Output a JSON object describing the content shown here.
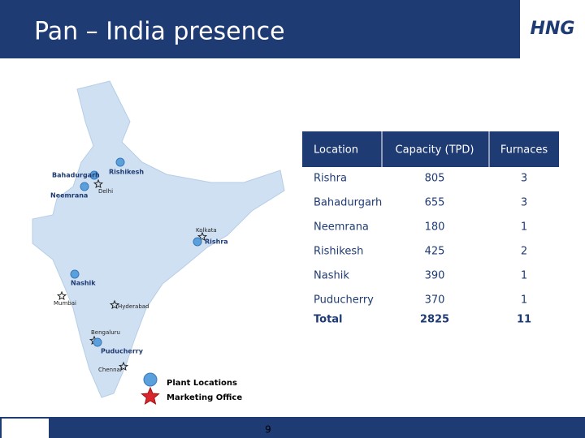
{
  "header": {
    "title": "Pan – India presence",
    "logo": "HNG"
  },
  "map": {
    "places": [
      {
        "label": "Rishikesh",
        "kind": "plant"
      },
      {
        "label": "Bahadurgarh",
        "kind": "plant"
      },
      {
        "label": "Delhi",
        "kind": "office"
      },
      {
        "label": "Neemrana",
        "kind": "plant"
      },
      {
        "label": "Kolkata",
        "kind": "office"
      },
      {
        "label": "Rishra",
        "kind": "plant"
      },
      {
        "label": "Nashik",
        "kind": "plant"
      },
      {
        "label": "Mumbai",
        "kind": "office"
      },
      {
        "label": "Hyderabad",
        "kind": "office"
      },
      {
        "label": "Bengaluru",
        "kind": "office"
      },
      {
        "label": "Puducherry",
        "kind": "plant"
      },
      {
        "label": "Chennai",
        "kind": "office"
      }
    ],
    "legend": {
      "plant": "Plant Locations",
      "office": "Marketing Office"
    }
  },
  "table": {
    "columns": [
      "Location",
      "Capacity (TPD)",
      "Furnaces"
    ],
    "rows": [
      [
        "Rishra",
        805,
        3
      ],
      [
        "Bahadurgarh",
        655,
        3
      ],
      [
        "Neemrana",
        180,
        1
      ],
      [
        "Rishikesh",
        425,
        2
      ],
      [
        "Nashik",
        390,
        1
      ],
      [
        "Puducherry",
        370,
        1
      ]
    ],
    "total": [
      "Total",
      2825,
      11
    ]
  },
  "footer": {
    "page": "9"
  }
}
